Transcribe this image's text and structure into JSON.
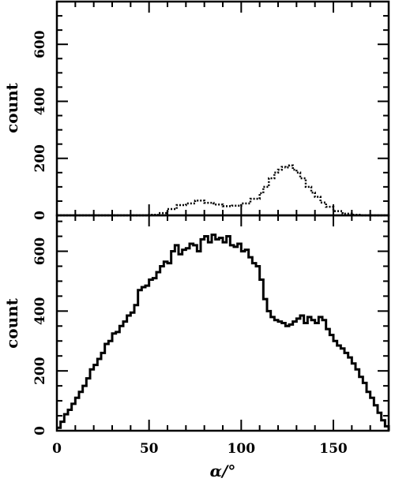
{
  "chart_data": [
    {
      "type": "line",
      "style": "histogram-dotted",
      "ylabel": "count",
      "xlim": [
        0,
        180
      ],
      "ylim": [
        0,
        750
      ],
      "xticks": [
        0,
        50,
        100,
        150
      ],
      "yticks": [
        0,
        200,
        400,
        600
      ],
      "yticklabels": [
        "0",
        "200",
        "400",
        "600"
      ],
      "x": [
        0,
        5,
        10,
        15,
        20,
        25,
        30,
        35,
        40,
        45,
        50,
        55,
        60,
        65,
        70,
        75,
        80,
        85,
        90,
        95,
        100,
        105,
        110,
        112,
        115,
        118,
        120,
        122,
        124,
        126,
        128,
        130,
        132,
        135,
        138,
        140,
        143,
        146,
        150,
        155,
        160,
        165,
        170,
        175,
        180
      ],
      "y": [
        0,
        0,
        0,
        0,
        0,
        0,
        0,
        0,
        0,
        0,
        2,
        8,
        22,
        36,
        42,
        52,
        44,
        38,
        32,
        34,
        42,
        58,
        78,
        100,
        130,
        150,
        160,
        170,
        168,
        175,
        160,
        150,
        130,
        100,
        80,
        65,
        45,
        30,
        15,
        6,
        2,
        0,
        0,
        0,
        0
      ]
    },
    {
      "type": "line",
      "style": "histogram",
      "ylabel": "count",
      "xlabel": "α/°",
      "xlim": [
        0,
        180
      ],
      "ylim": [
        0,
        720
      ],
      "xticks": [
        0,
        50,
        100,
        150
      ],
      "xticklabels": [
        "0",
        "50",
        "100",
        "150"
      ],
      "yticks": [
        0,
        200,
        400,
        600
      ],
      "yticklabels": [
        "0",
        "200",
        "400",
        "600"
      ],
      "x": [
        0,
        2,
        4,
        6,
        8,
        10,
        12,
        14,
        16,
        18,
        20,
        22,
        24,
        26,
        28,
        30,
        32,
        34,
        36,
        38,
        40,
        42,
        44,
        46,
        48,
        50,
        52,
        54,
        56,
        58,
        60,
        62,
        64,
        66,
        68,
        70,
        72,
        74,
        76,
        78,
        80,
        82,
        84,
        86,
        88,
        90,
        92,
        94,
        96,
        98,
        100,
        102,
        104,
        106,
        108,
        110,
        112,
        114,
        116,
        118,
        120,
        122,
        124,
        126,
        128,
        130,
        132,
        134,
        136,
        138,
        140,
        142,
        144,
        146,
        148,
        150,
        152,
        154,
        156,
        158,
        160,
        162,
        164,
        166,
        168,
        170,
        172,
        174,
        176,
        178,
        180
      ],
      "y": [
        10,
        30,
        55,
        70,
        90,
        110,
        130,
        150,
        175,
        205,
        220,
        240,
        260,
        290,
        300,
        325,
        330,
        350,
        365,
        385,
        395,
        420,
        470,
        480,
        485,
        505,
        510,
        530,
        550,
        565,
        560,
        600,
        620,
        590,
        605,
        610,
        625,
        620,
        600,
        640,
        650,
        630,
        655,
        640,
        645,
        630,
        650,
        620,
        615,
        625,
        600,
        605,
        580,
        560,
        550,
        505,
        440,
        400,
        380,
        370,
        365,
        360,
        350,
        355,
        365,
        375,
        385,
        360,
        380,
        370,
        360,
        380,
        370,
        340,
        320,
        300,
        285,
        275,
        260,
        245,
        225,
        205,
        180,
        160,
        130,
        110,
        85,
        60,
        35,
        15,
        0
      ]
    }
  ]
}
